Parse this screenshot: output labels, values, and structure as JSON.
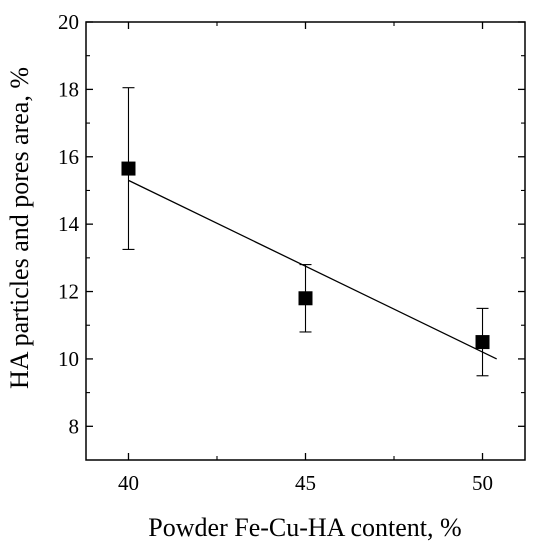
{
  "chart_data": {
    "type": "scatter",
    "title": "",
    "xlabel": "Powder Fe-Cu-HA content, %",
    "ylabel": "HA particles and pores area, %",
    "xlim": [
      38.8,
      51.2
    ],
    "ylim": [
      7,
      20
    ],
    "x_ticks": [
      40,
      45,
      50
    ],
    "y_ticks": [
      8,
      10,
      12,
      14,
      16,
      18,
      20
    ],
    "grid": false,
    "legend": "none",
    "marker": "square",
    "color": "#000000",
    "series": [
      {
        "x": [
          40,
          45,
          50
        ],
        "y": [
          15.65,
          11.8,
          10.5
        ],
        "error": [
          2.4,
          1.0,
          1.0
        ]
      }
    ],
    "fit_line": {
      "x": [
        40,
        50.4
      ],
      "y": [
        15.3,
        10.0
      ]
    }
  }
}
